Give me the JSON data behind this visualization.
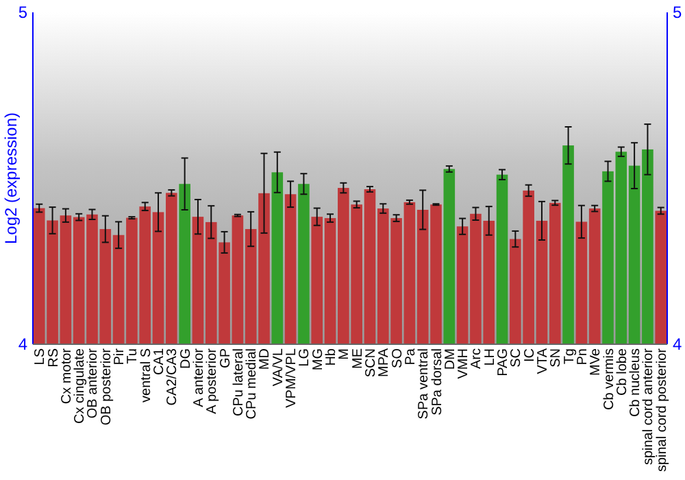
{
  "chart_data": {
    "type": "bar",
    "ylabel": "Log2 (expression)",
    "categories": [
      "LS",
      "RS",
      "Cx motor",
      "Cx cingulate",
      "OB anterior",
      "OB posterior",
      "Pir",
      "Tu",
      "ventral S",
      "CA1",
      "CA2/CA3",
      "DG",
      "A anterior",
      "A posterior",
      "GP",
      "CPu lateral",
      "CPu medial",
      "MD",
      "VA/VL",
      "VPM/VPL",
      "LG",
      "MG",
      "Hb",
      "M",
      "ME",
      "SCN",
      "MPA",
      "SO",
      "Pa",
      "SPa ventral",
      "SPa dorsal",
      "DM",
      "VMH",
      "Arc",
      "LH",
      "PAG",
      "SC",
      "IC",
      "VTA",
      "SN",
      "Tg",
      "Pn",
      "MVe",
      "Cb vermis",
      "Cb lobe",
      "Cb nucleus",
      "spinal cord anterior",
      "spinal cord posterior"
    ],
    "values": [
      4.41,
      4.373,
      4.388,
      4.383,
      4.391,
      4.347,
      4.329,
      4.381,
      4.415,
      4.398,
      4.456,
      4.483,
      4.384,
      4.368,
      4.307,
      4.388,
      4.347,
      4.455,
      4.518,
      4.452,
      4.483,
      4.384,
      4.38,
      4.471,
      4.421,
      4.467,
      4.409,
      4.38,
      4.428,
      4.405,
      4.421,
      4.528,
      4.355,
      4.393,
      4.372,
      4.511,
      4.317,
      4.463,
      4.372,
      4.426,
      4.599,
      4.369,
      4.409,
      4.521,
      4.58,
      4.538,
      4.587,
      4.402
    ],
    "errors": [
      0.012,
      0.04,
      0.02,
      0.01,
      0.015,
      0.04,
      0.04,
      0.003,
      0.012,
      0.058,
      0.009,
      0.078,
      0.052,
      0.049,
      0.032,
      0.003,
      0.052,
      0.12,
      0.061,
      0.039,
      0.031,
      0.026,
      0.012,
      0.015,
      0.01,
      0.008,
      0.014,
      0.01,
      0.006,
      0.059,
      0.002,
      0.009,
      0.024,
      0.019,
      0.043,
      0.015,
      0.024,
      0.017,
      0.058,
      0.007,
      0.056,
      0.049,
      0.009,
      0.03,
      0.014,
      0.069,
      0.076,
      0.01
    ],
    "colors": [
      "#c0393b",
      "#c0393b",
      "#c0393b",
      "#c0393b",
      "#c0393b",
      "#c0393b",
      "#c0393b",
      "#c0393b",
      "#c0393b",
      "#c0393b",
      "#c0393b",
      "#33a02c",
      "#c0393b",
      "#c0393b",
      "#c0393b",
      "#c0393b",
      "#c0393b",
      "#c0393b",
      "#33a02c",
      "#c0393b",
      "#33a02c",
      "#c0393b",
      "#c0393b",
      "#c0393b",
      "#c0393b",
      "#c0393b",
      "#c0393b",
      "#c0393b",
      "#c0393b",
      "#c0393b",
      "#c0393b",
      "#33a02c",
      "#c0393b",
      "#c0393b",
      "#c0393b",
      "#33a02c",
      "#c0393b",
      "#c0393b",
      "#c0393b",
      "#c0393b",
      "#33a02c",
      "#c0393b",
      "#c0393b",
      "#33a02c",
      "#33a02c",
      "#33a02c",
      "#33a02c",
      "#c0393b"
    ],
    "ylim": [
      4,
      5
    ],
    "yticks": [
      4,
      5
    ],
    "y2lim": [
      4,
      5
    ],
    "y2ticks": [
      4,
      5
    ],
    "grid": false
  }
}
